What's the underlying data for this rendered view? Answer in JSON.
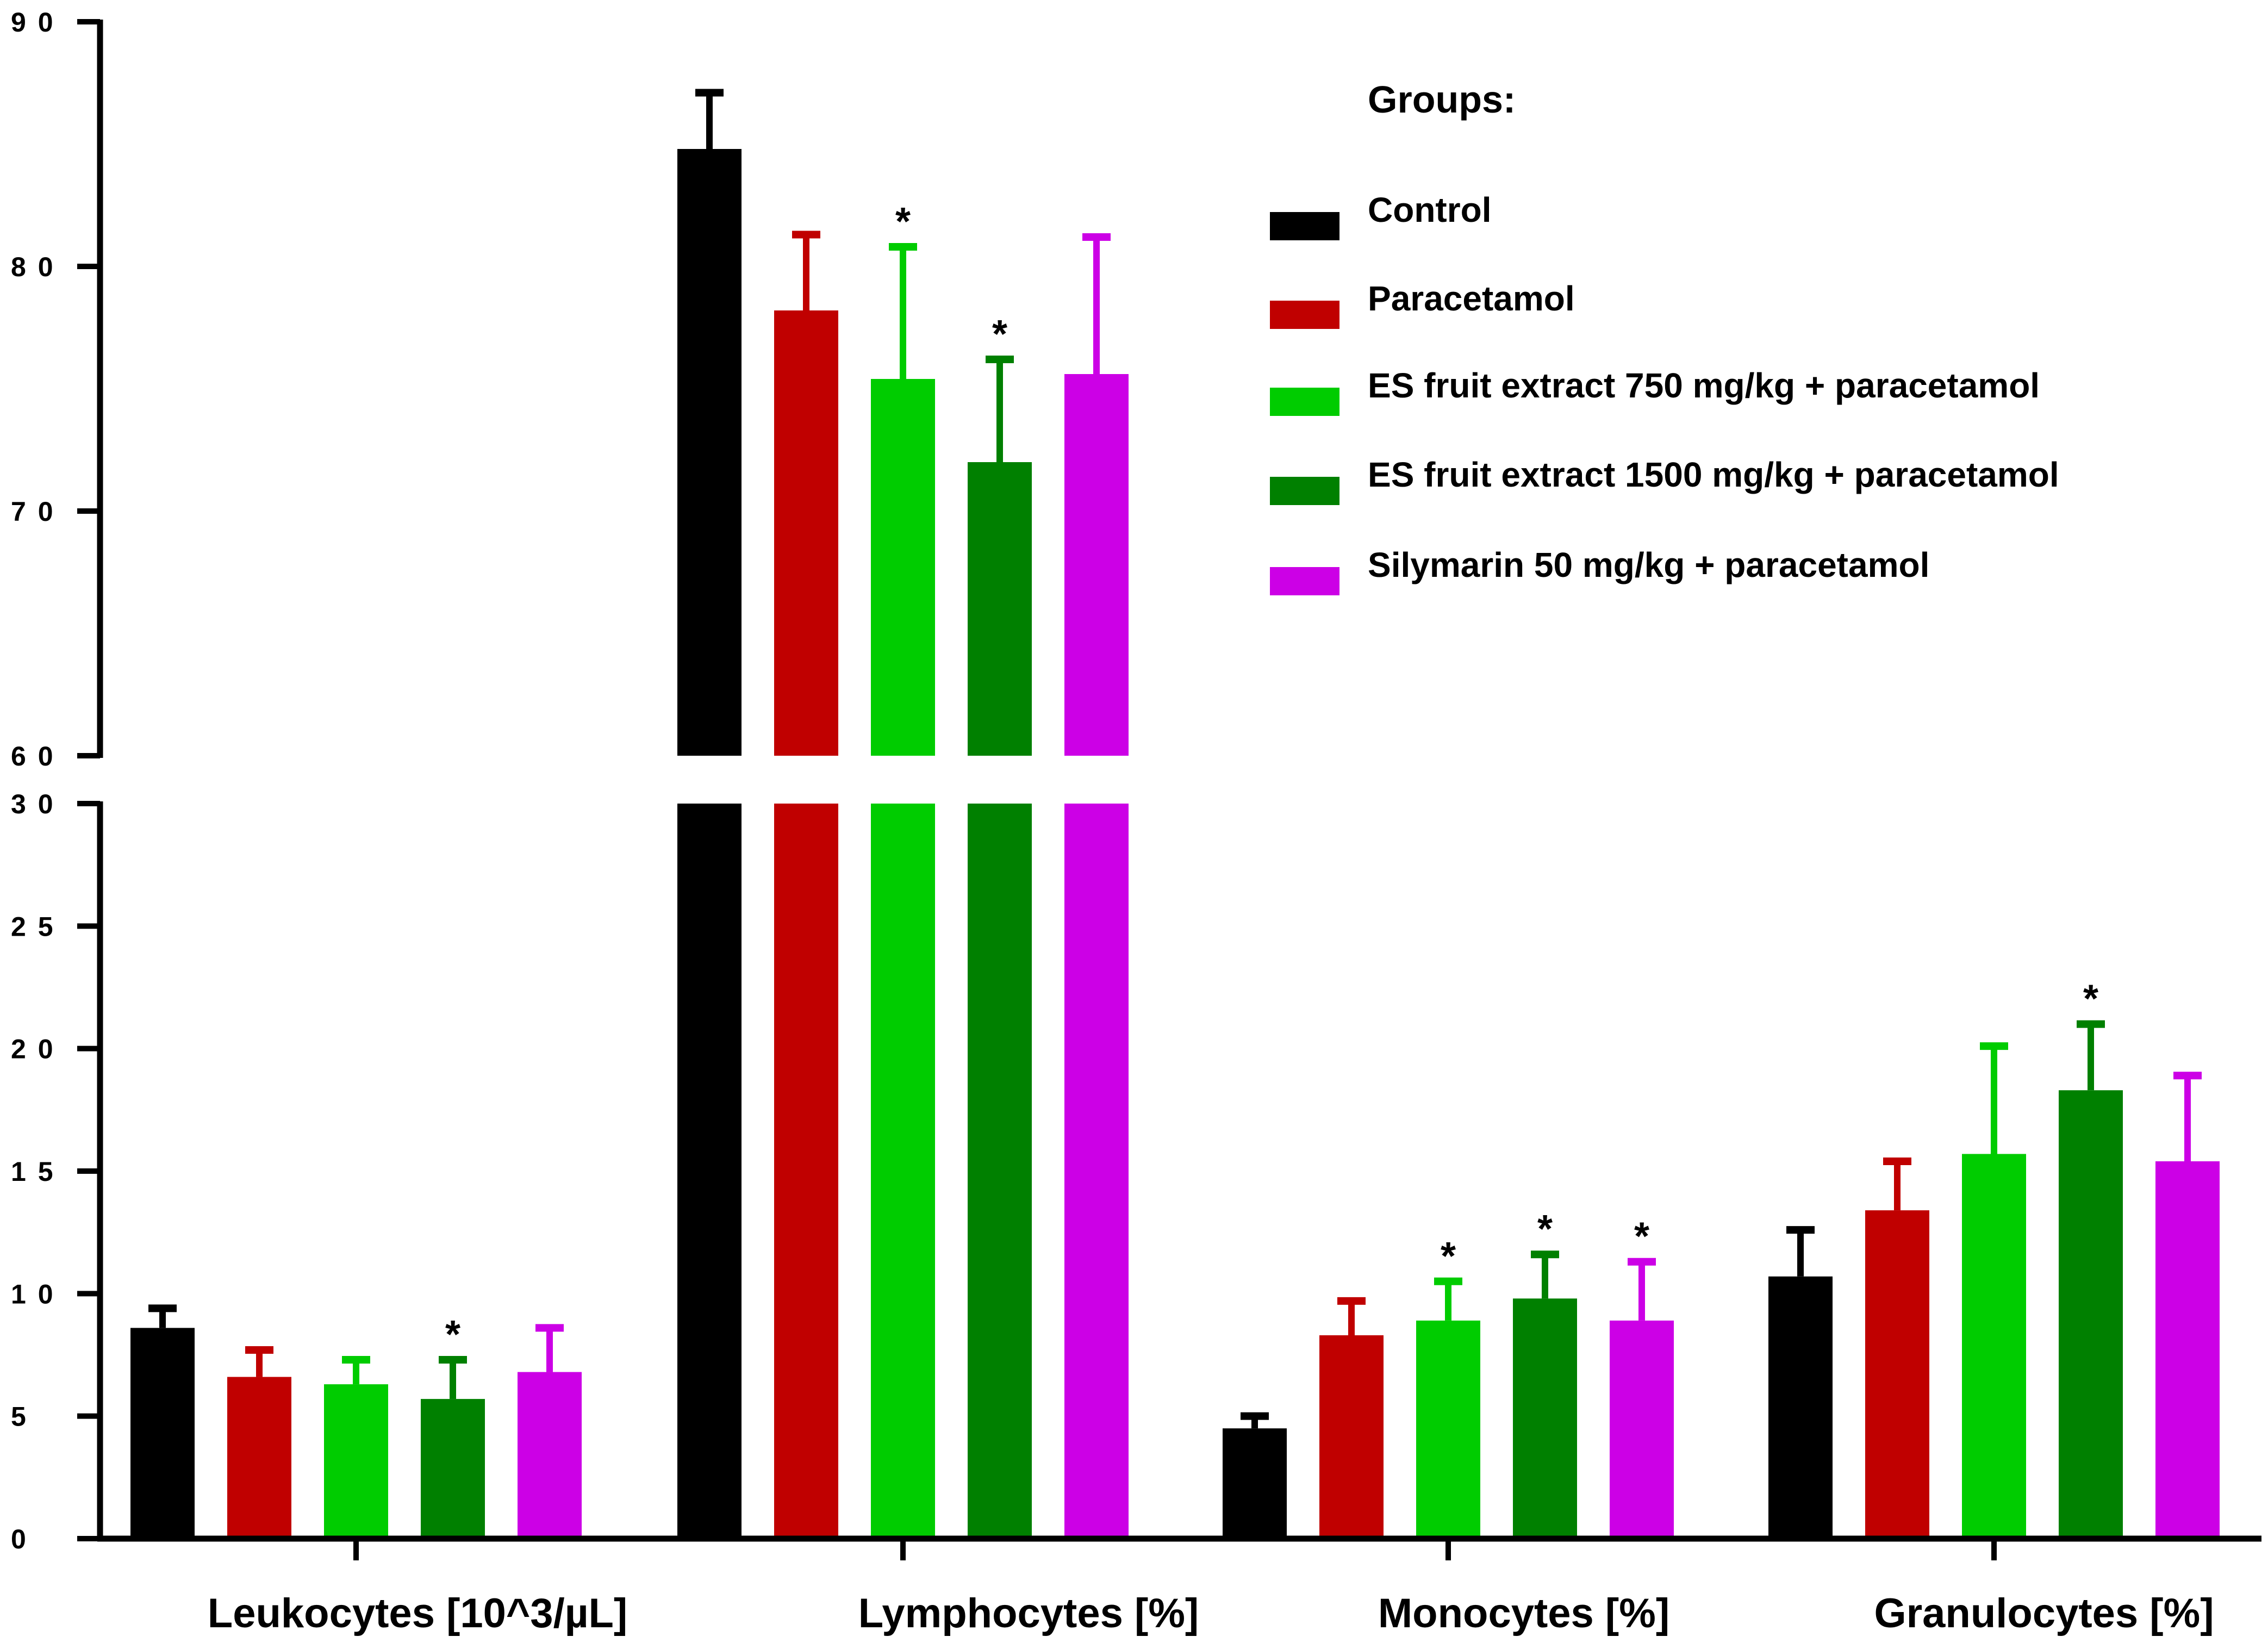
{
  "chart_data": {
    "type": "bar",
    "title": "",
    "xlabel": "",
    "ylabel": "",
    "grid": false,
    "legend_position": "top-right",
    "legend_title": "Groups:",
    "categories": [
      "Leukocytes [10^3/µL]",
      "Lymphocytes [%]",
      "Monocytes [%]",
      "Granulocytes [%]"
    ],
    "y_axis": {
      "broken": true,
      "lower_range": [
        0,
        30
      ],
      "upper_range": [
        60,
        90
      ],
      "lower_ticks": [
        "0",
        "5",
        "10",
        "15",
        "20",
        "25",
        "30"
      ],
      "upper_ticks": [
        "60",
        "70",
        "80",
        "90"
      ]
    },
    "series": [
      {
        "name": "Control",
        "color": "#000000",
        "values": [
          8.6,
          84.8,
          4.5,
          10.7
        ],
        "errors": [
          0.8,
          2.3,
          0.5,
          1.9
        ],
        "significance": [
          "",
          "",
          "",
          ""
        ]
      },
      {
        "name": "Paracetamol",
        "color": "#c00000",
        "values": [
          6.6,
          78.2,
          8.3,
          13.4
        ],
        "errors": [
          1.1,
          3.1,
          1.4,
          2.0
        ],
        "significance": [
          "",
          "",
          "",
          ""
        ]
      },
      {
        "name": "ES fruit extract 750 mg/kg + paracetamol",
        "color": "#00cc00",
        "values": [
          6.3,
          75.4,
          8.9,
          15.7
        ],
        "errors": [
          1.0,
          5.4,
          1.6,
          4.4
        ],
        "significance": [
          "",
          "*",
          "*",
          ""
        ]
      },
      {
        "name": "ES fruit extract 1500 mg/kg + paracetamol",
        "color": "#008000",
        "values": [
          5.7,
          72.0,
          9.8,
          18.3
        ],
        "errors": [
          1.6,
          4.2,
          1.8,
          2.7
        ],
        "significance": [
          "*",
          "*",
          "*",
          "*"
        ]
      },
      {
        "name": "Silymarin 50 mg/kg + paracetamol",
        "color": "#cc00e6",
        "values": [
          6.8,
          75.6,
          8.9,
          15.4
        ],
        "errors": [
          1.8,
          5.6,
          2.4,
          3.5
        ],
        "significance": [
          "",
          "",
          "*",
          ""
        ]
      }
    ]
  }
}
